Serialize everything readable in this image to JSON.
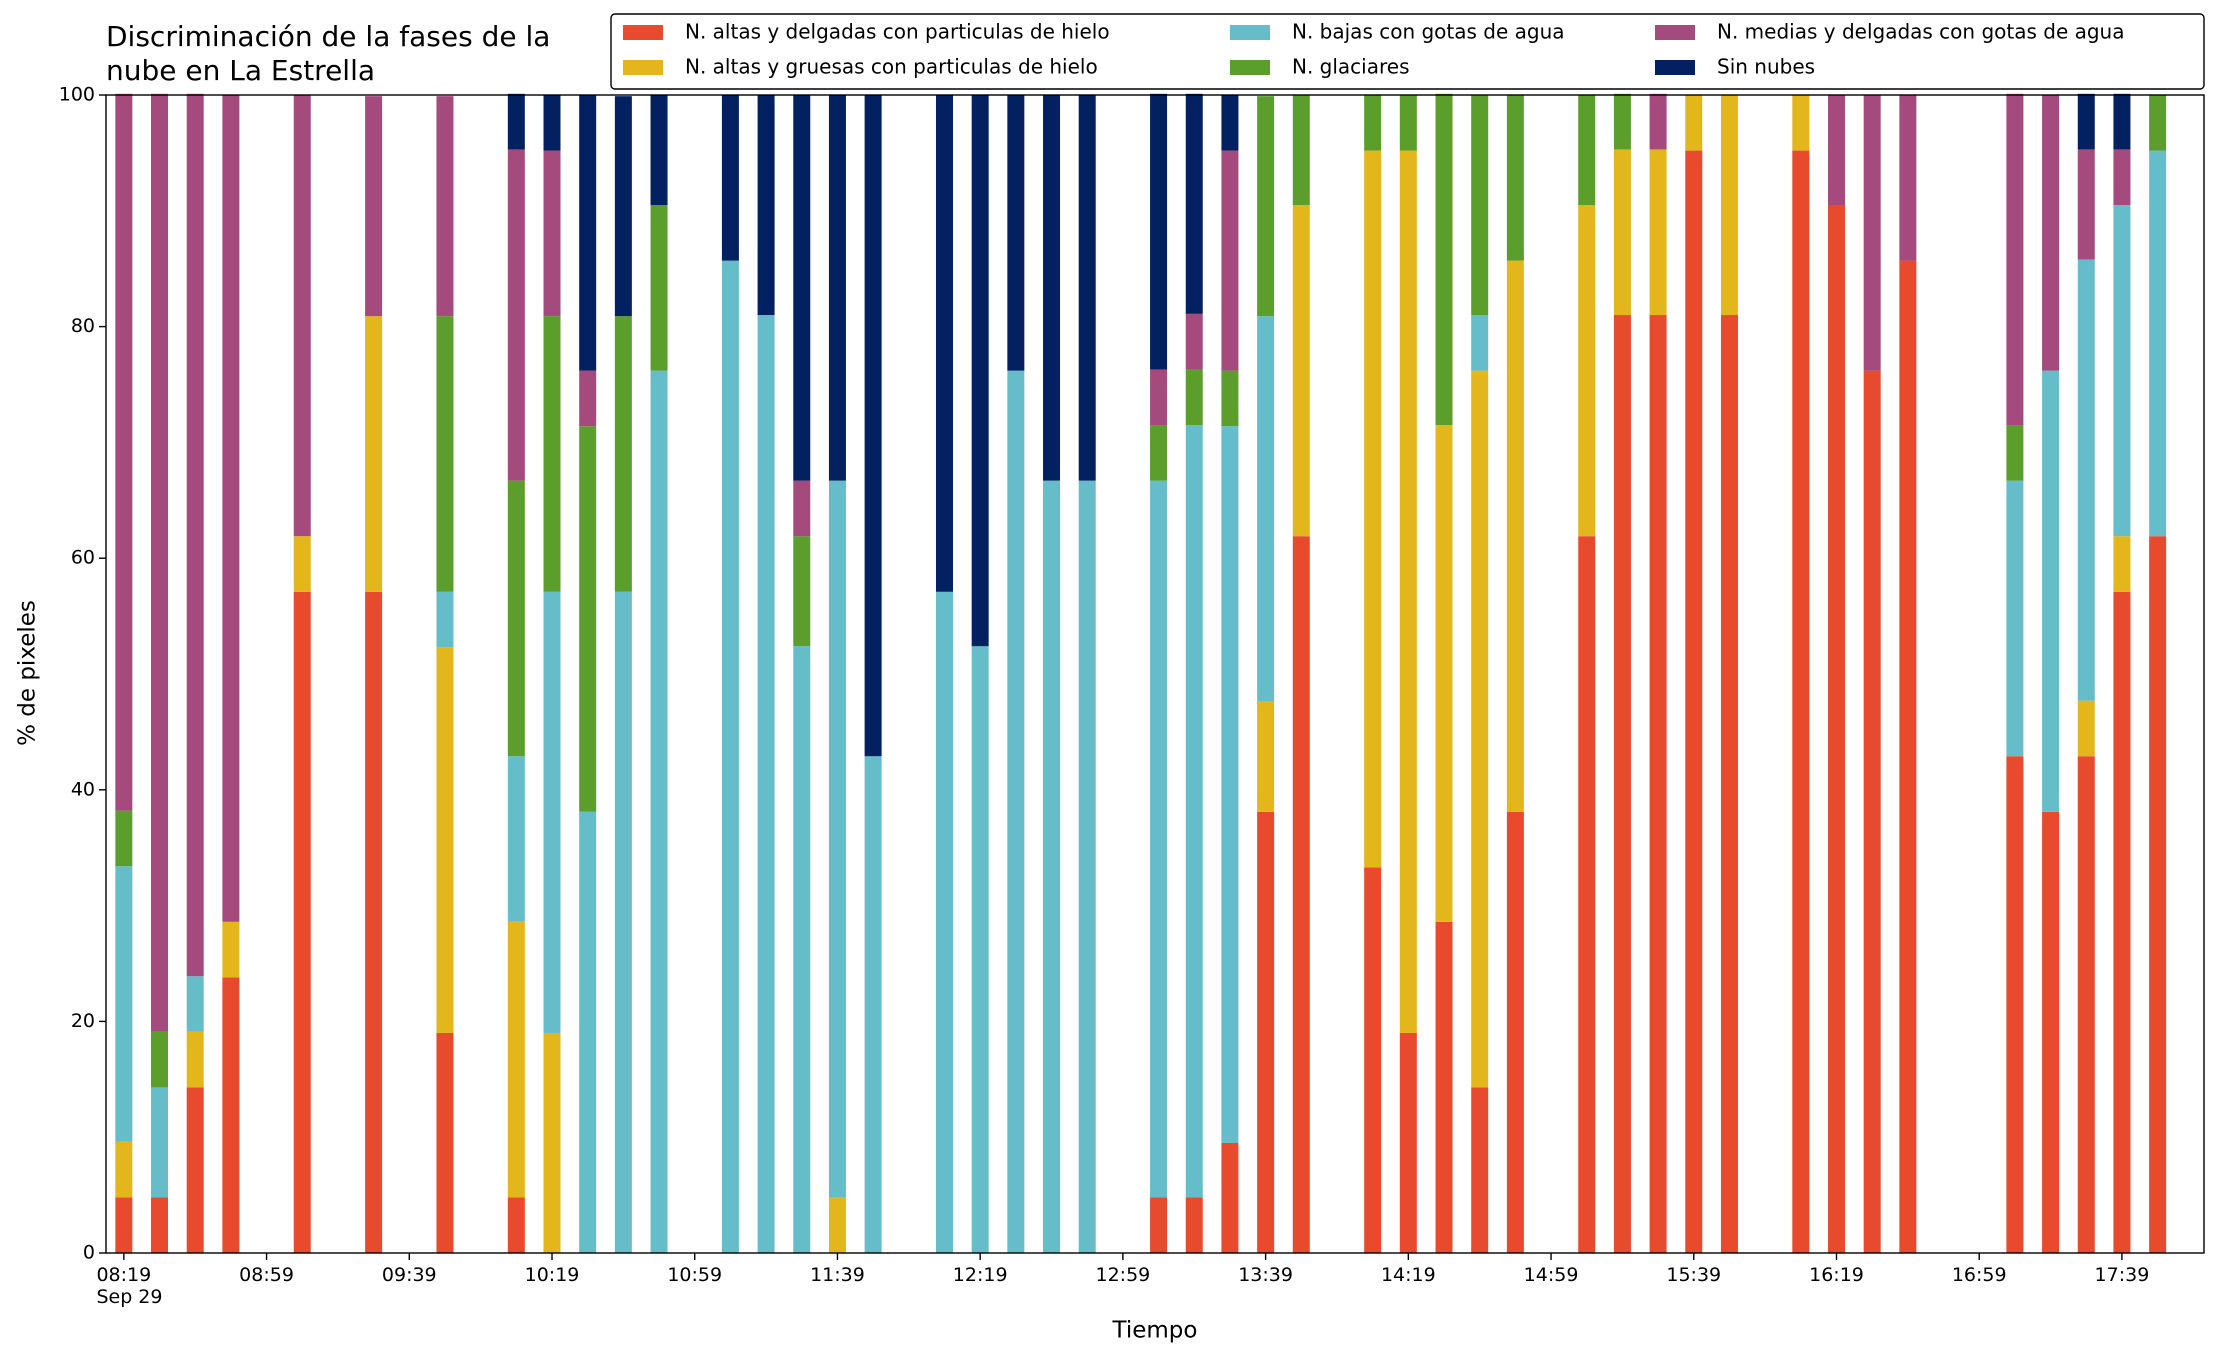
{
  "chart_data": {
    "type": "stacked_bar",
    "title": "Discriminación de la fases de la\nnube en La Estrella",
    "xlabel": "Tiempo",
    "ylabel": "% de pixeles",
    "x": [
      "08:19",
      "08:29",
      "08:39",
      "08:49",
      "09:09",
      "09:29",
      "09:49",
      "10:09",
      "10:19",
      "10:29",
      "10:39",
      "10:49",
      "11:09",
      "11:19",
      "11:29",
      "11:39",
      "11:49",
      "12:09",
      "12:19",
      "12:29",
      "12:39",
      "12:49",
      "13:09",
      "13:19",
      "13:29",
      "13:39",
      "13:49",
      "14:09",
      "14:19",
      "14:29",
      "14:39",
      "14:49",
      "15:09",
      "15:19",
      "15:29",
      "15:39",
      "15:49",
      "16:09",
      "16:19",
      "16:29",
      "16:39",
      "17:09",
      "17:19",
      "17:29",
      "17:39",
      "17:49"
    ],
    "series": [
      {
        "name": "N. altas y delgadas con particulas de hielo",
        "color": "#e84a2e",
        "values": [
          4.8,
          4.8,
          14.3,
          23.8,
          57.1,
          57.1,
          19.0,
          4.8,
          0,
          0,
          0,
          0,
          0,
          0,
          0,
          0,
          0,
          0,
          0,
          0,
          0,
          0,
          4.8,
          4.8,
          9.5,
          38.1,
          61.9,
          33.3,
          19.0,
          28.6,
          14.3,
          38.1,
          61.9,
          81.0,
          81.0,
          95.2,
          81.0,
          95.2,
          90.5,
          76.2,
          85.7,
          42.9,
          38.1,
          42.9,
          57.1,
          61.9
        ]
      },
      {
        "name": "N. altas y gruesas con particulas de hielo",
        "color": "#e3b61c",
        "values": [
          4.8,
          0,
          4.8,
          4.8,
          4.8,
          23.8,
          33.3,
          23.8,
          19.0,
          0,
          0,
          0,
          0,
          0,
          0,
          4.8,
          0,
          0,
          0,
          0,
          0,
          0,
          0,
          0,
          0,
          9.5,
          28.6,
          61.9,
          76.2,
          42.9,
          61.9,
          47.6,
          28.6,
          14.3,
          14.3,
          4.8,
          19.0,
          4.8,
          0,
          0,
          0,
          0,
          0,
          4.8,
          4.8,
          0
        ]
      },
      {
        "name": "N. bajas con gotas de agua",
        "color": "#65bdc9",
        "values": [
          23.8,
          9.5,
          4.8,
          0,
          0,
          0,
          4.8,
          14.3,
          38.1,
          38.1,
          57.1,
          76.2,
          85.7,
          81.0,
          52.4,
          61.9,
          42.9,
          57.1,
          52.4,
          76.2,
          66.7,
          66.7,
          61.9,
          66.7,
          61.9,
          33.3,
          0,
          0,
          0,
          0,
          4.8,
          0,
          0,
          0,
          0,
          0,
          0,
          0,
          0,
          0,
          0,
          23.8,
          38.1,
          38.1,
          28.6,
          33.3
        ]
      },
      {
        "name": "N. glaciares",
        "color": "#5b9e2c",
        "values": [
          4.8,
          4.8,
          0,
          0,
          0,
          0,
          23.8,
          23.8,
          23.8,
          33.3,
          23.8,
          14.3,
          0,
          0,
          9.5,
          0,
          0,
          0,
          0,
          0,
          0,
          0,
          4.8,
          4.8,
          4.8,
          19.0,
          9.5,
          4.8,
          4.8,
          28.6,
          19.0,
          14.3,
          9.5,
          4.8,
          0,
          0,
          0,
          0,
          0,
          0,
          0,
          4.8,
          0,
          0,
          0,
          4.8
        ]
      },
      {
        "name": "N. medias y delgadas con gotas de agua",
        "color": "#a44a7c",
        "values": [
          61.9,
          81.0,
          76.2,
          71.4,
          38.1,
          19.0,
          19.0,
          28.6,
          14.3,
          4.8,
          0,
          0,
          0,
          0,
          4.8,
          0,
          0,
          0,
          0,
          0,
          0,
          0,
          4.8,
          4.8,
          19.0,
          0,
          0,
          0,
          0,
          0,
          0,
          0,
          0,
          0,
          4.8,
          0,
          0,
          0,
          9.5,
          23.8,
          14.3,
          28.6,
          23.8,
          9.5,
          4.8,
          0
        ]
      },
      {
        "name": "Sin nubes",
        "color": "#032060",
        "values": [
          0,
          0,
          0,
          0,
          0,
          0,
          0,
          4.8,
          4.8,
          23.8,
          19.0,
          9.5,
          14.3,
          19.0,
          33.3,
          33.3,
          57.1,
          42.9,
          47.6,
          23.8,
          33.3,
          33.3,
          23.8,
          19.0,
          4.8,
          0,
          0,
          0,
          0,
          0,
          0,
          0,
          0,
          0,
          0,
          0,
          0,
          0,
          0,
          0,
          0,
          0,
          0,
          4.8,
          4.8,
          0
        ]
      }
    ],
    "xlim": [
      "08:14",
      "18:02"
    ],
    "xticks": [
      {
        "value": "08:19",
        "label": "08:19\nSep 29"
      },
      "08:59",
      "09:39",
      "10:19",
      "10:59",
      "11:39",
      "12:19",
      "12:59",
      "13:39",
      "14:19",
      "14:59",
      "15:39",
      "16:19",
      "16:59",
      "17:39"
    ],
    "ylim": [
      0,
      100
    ],
    "yticks": [
      0,
      20,
      40,
      60,
      80,
      100
    ],
    "grid": false,
    "legend": "top-right"
  }
}
